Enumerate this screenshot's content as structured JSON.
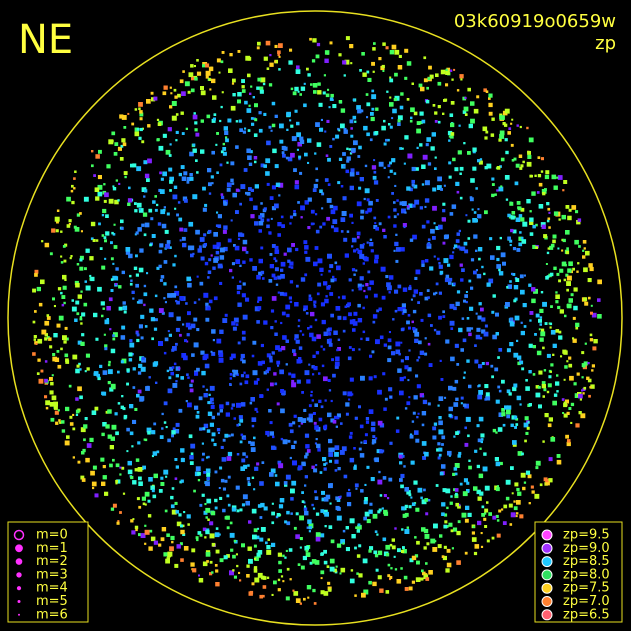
{
  "header": {
    "direction": "NE",
    "frame": "03k60919o0659w",
    "quantity": "zp"
  },
  "magnitude_legend": [
    {
      "label": "m=0"
    },
    {
      "label": "m=1"
    },
    {
      "label": "m=2"
    },
    {
      "label": "m=3"
    },
    {
      "label": "m=4"
    },
    {
      "label": "m=5"
    },
    {
      "label": "m=6"
    }
  ],
  "zp_legend": [
    {
      "label": "zp=9.5",
      "color": "#ff44ff"
    },
    {
      "label": "zp=9.0",
      "color": "#a030ff"
    },
    {
      "label": "zp=8.5",
      "color": "#20c8ff"
    },
    {
      "label": "zp=8.0",
      "color": "#30e060"
    },
    {
      "label": "zp=7.5",
      "color": "#ffd020"
    },
    {
      "label": "zp=7.0",
      "color": "#ff8030"
    },
    {
      "label": "zp=6.5",
      "color": "#ff6070"
    }
  ]
}
